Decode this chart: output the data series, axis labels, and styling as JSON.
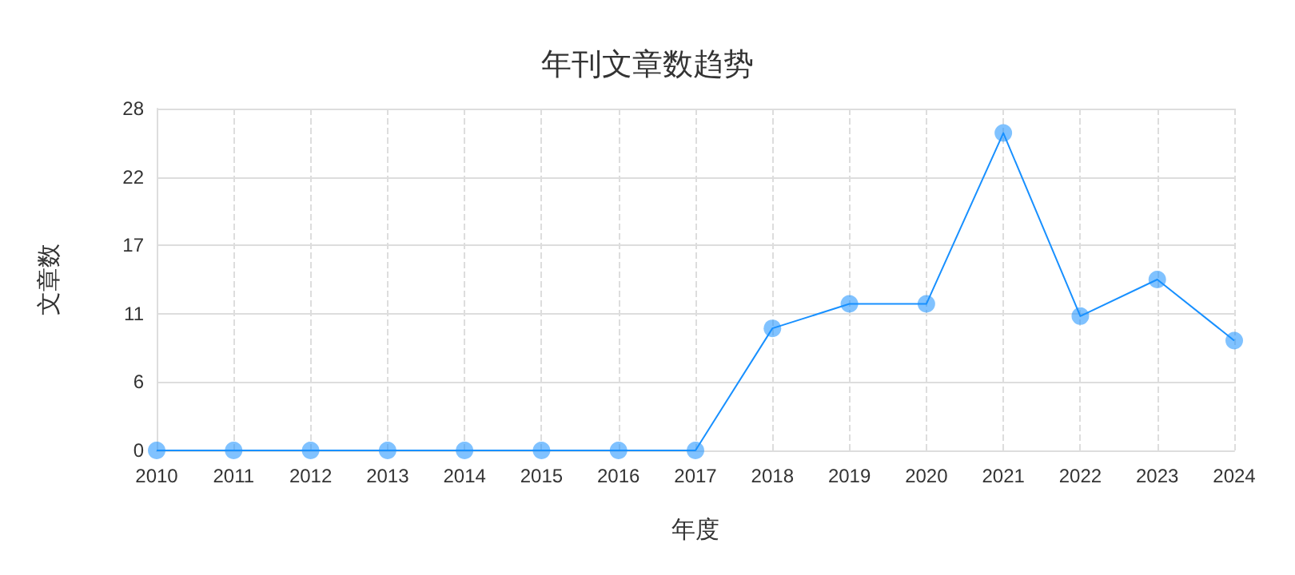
{
  "chart_data": {
    "type": "line",
    "title": "年刊文章数趋势",
    "xlabel": "年度",
    "ylabel": "文章数",
    "categories": [
      "2010",
      "2011",
      "2012",
      "2013",
      "2014",
      "2015",
      "2016",
      "2017",
      "2018",
      "2019",
      "2020",
      "2021",
      "2022",
      "2023",
      "2024"
    ],
    "series": [
      {
        "color": "#1890ff",
        "values": [
          0,
          0,
          0,
          0,
          0,
          0,
          0,
          0,
          10,
          12,
          12,
          26,
          11,
          14,
          9
        ]
      }
    ],
    "ylim": [
      0,
      28
    ],
    "yticks": [
      0,
      {
        "value": 5.6,
        "label": "6"
      },
      {
        "value": 11.2,
        "label": "11"
      },
      {
        "value": 16.8,
        "label": "17"
      },
      {
        "value": 22.4,
        "label": "22"
      },
      28
    ],
    "grid": true,
    "marker": "circle",
    "line_style": "solid"
  }
}
